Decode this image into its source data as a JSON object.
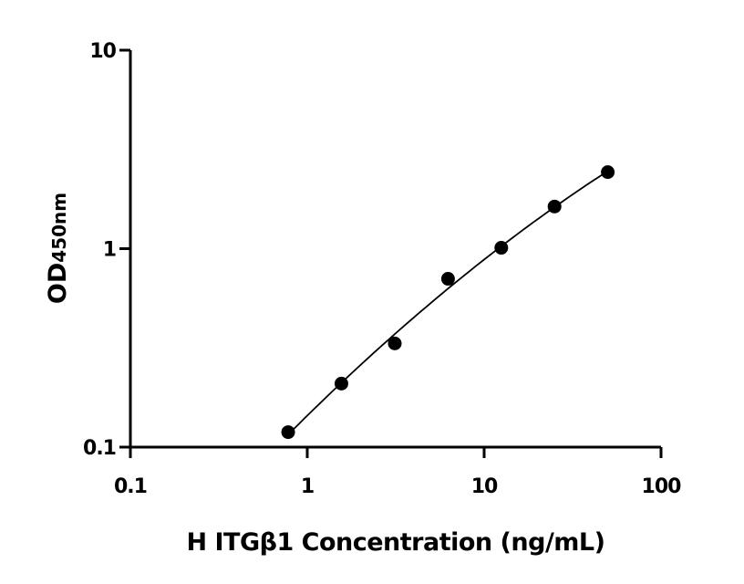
{
  "chart_data": {
    "type": "scatter",
    "title": "",
    "xlabel": "H ITGβ1 Concentration (ng/mL)",
    "ylabel": "OD",
    "ylabel_subscript": "450nm",
    "xscale": "log",
    "yscale": "log",
    "xlim": [
      0.1,
      100
    ],
    "ylim": [
      0.1,
      10
    ],
    "xticks": [
      "0.1",
      "1",
      "10",
      "100"
    ],
    "yticks": [
      "0.1",
      "1",
      "10"
    ],
    "grid": false,
    "legend": "none",
    "fit_curve": true,
    "colors": {
      "points": "#000000",
      "line": "#000000"
    },
    "series": [
      {
        "x": [
          0.78,
          1.56,
          3.125,
          6.25,
          12.5,
          25,
          50
        ],
        "y": [
          0.119,
          0.209,
          0.333,
          0.705,
          1.01,
          1.63,
          2.43
        ]
      }
    ]
  }
}
